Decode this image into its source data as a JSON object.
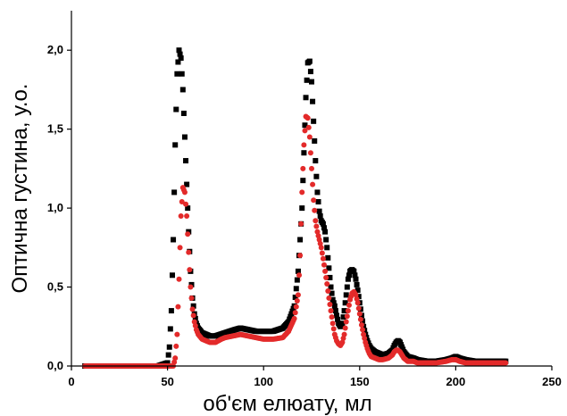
{
  "chart_data": {
    "type": "scatter",
    "title": "",
    "xlabel": "об'єм елюату, мл",
    "ylabel": "Оптична густина, у.о.",
    "xlim": [
      0,
      250
    ],
    "ylim": [
      0,
      2.25
    ],
    "x_ticks": [
      {
        "value": 0,
        "label": "0"
      },
      {
        "value": 50,
        "label": "50"
      },
      {
        "value": 100,
        "label": "100"
      },
      {
        "value": 150,
        "label": "150"
      },
      {
        "value": 200,
        "label": "200"
      },
      {
        "value": 250,
        "label": "250"
      }
    ],
    "y_ticks": [
      {
        "value": 0,
        "label": "0,0"
      },
      {
        "value": 0.5,
        "label": "0,5"
      },
      {
        "value": 1.0,
        "label": "1,0"
      },
      {
        "value": 1.5,
        "label": "1,5"
      },
      {
        "value": 2.0,
        "label": "2,0"
      }
    ],
    "grid": false,
    "legend": "none",
    "series": [
      {
        "color": "#000000",
        "marker": "square",
        "x": [
          7,
          20,
          35,
          45,
          50,
          51,
          52,
          53,
          54,
          55,
          56,
          57,
          58,
          59,
          60,
          61,
          62,
          63,
          64,
          65,
          66,
          68,
          70,
          72,
          75,
          80,
          85,
          88,
          92,
          96,
          100,
          105,
          110,
          113,
          116,
          118,
          120,
          121,
          122,
          123,
          124,
          125,
          126,
          127,
          128,
          129,
          130,
          131,
          132,
          133,
          134,
          135,
          136,
          137,
          138,
          139,
          140,
          141,
          142,
          143,
          144,
          145,
          146,
          147,
          148,
          149,
          150,
          151,
          152,
          153,
          154,
          155,
          156,
          158,
          160,
          162,
          165,
          167,
          168,
          169,
          170,
          171,
          172,
          173,
          175,
          178,
          180,
          185,
          190,
          195,
          198,
          200,
          202,
          205,
          210,
          215,
          220,
          226
        ],
        "y": [
          0.0,
          0.0,
          0.0,
          0.0,
          0.02,
          0.12,
          0.35,
          0.8,
          1.4,
          1.85,
          2.0,
          1.95,
          1.75,
          1.45,
          1.15,
          0.85,
          0.6,
          0.43,
          0.33,
          0.27,
          0.24,
          0.21,
          0.2,
          0.19,
          0.19,
          0.21,
          0.23,
          0.24,
          0.23,
          0.22,
          0.22,
          0.22,
          0.24,
          0.28,
          0.38,
          0.6,
          1.0,
          1.35,
          1.7,
          1.92,
          1.93,
          1.8,
          1.55,
          1.3,
          1.1,
          0.98,
          0.92,
          0.9,
          0.85,
          0.75,
          0.62,
          0.5,
          0.42,
          0.38,
          0.32,
          0.27,
          0.25,
          0.27,
          0.35,
          0.45,
          0.55,
          0.6,
          0.61,
          0.6,
          0.55,
          0.48,
          0.4,
          0.32,
          0.25,
          0.2,
          0.16,
          0.13,
          0.11,
          0.09,
          0.08,
          0.07,
          0.08,
          0.1,
          0.13,
          0.15,
          0.16,
          0.15,
          0.12,
          0.09,
          0.06,
          0.05,
          0.04,
          0.03,
          0.03,
          0.04,
          0.05,
          0.06,
          0.05,
          0.04,
          0.03,
          0.03,
          0.03,
          0.03
        ]
      },
      {
        "color": "#e32a2a",
        "marker": "circle",
        "x": [
          7,
          20,
          35,
          45,
          50,
          53,
          54,
          55,
          56,
          57,
          58,
          59,
          60,
          61,
          62,
          63,
          64,
          65,
          66,
          68,
          70,
          72,
          75,
          78,
          80,
          84,
          88,
          92,
          96,
          100,
          105,
          110,
          113,
          116,
          118,
          119,
          120,
          121,
          122,
          123,
          124,
          125,
          126,
          127,
          128,
          129,
          130,
          131,
          132,
          133,
          134,
          135,
          136,
          137,
          138,
          139,
          140,
          141,
          142,
          143,
          144,
          145,
          146,
          147,
          148,
          149,
          150,
          151,
          152,
          153,
          154,
          155,
          156,
          158,
          160,
          162,
          165,
          167,
          168,
          169,
          170,
          171,
          172,
          173,
          175,
          178,
          180,
          185,
          190,
          195,
          198,
          200,
          202,
          205,
          210,
          215,
          220,
          226
        ],
        "y": [
          0.0,
          0.0,
          0.0,
          0.0,
          0.0,
          0.0,
          0.05,
          0.2,
          0.55,
          0.95,
          1.13,
          1.1,
          0.95,
          0.72,
          0.5,
          0.36,
          0.28,
          0.23,
          0.2,
          0.17,
          0.16,
          0.15,
          0.15,
          0.17,
          0.18,
          0.19,
          0.2,
          0.19,
          0.18,
          0.17,
          0.17,
          0.18,
          0.22,
          0.3,
          0.45,
          0.7,
          1.1,
          1.4,
          1.58,
          1.57,
          1.45,
          1.25,
          1.05,
          0.92,
          0.85,
          0.8,
          0.75,
          0.68,
          0.6,
          0.52,
          0.43,
          0.35,
          0.27,
          0.2,
          0.16,
          0.14,
          0.13,
          0.15,
          0.2,
          0.28,
          0.35,
          0.42,
          0.46,
          0.47,
          0.45,
          0.4,
          0.33,
          0.26,
          0.2,
          0.15,
          0.11,
          0.08,
          0.06,
          0.05,
          0.04,
          0.04,
          0.05,
          0.07,
          0.09,
          0.1,
          0.1,
          0.09,
          0.07,
          0.05,
          0.03,
          0.03,
          0.02,
          0.02,
          0.02,
          0.03,
          0.04,
          0.04,
          0.03,
          0.02,
          0.02,
          0.02,
          0.02,
          0.02
        ]
      }
    ]
  }
}
